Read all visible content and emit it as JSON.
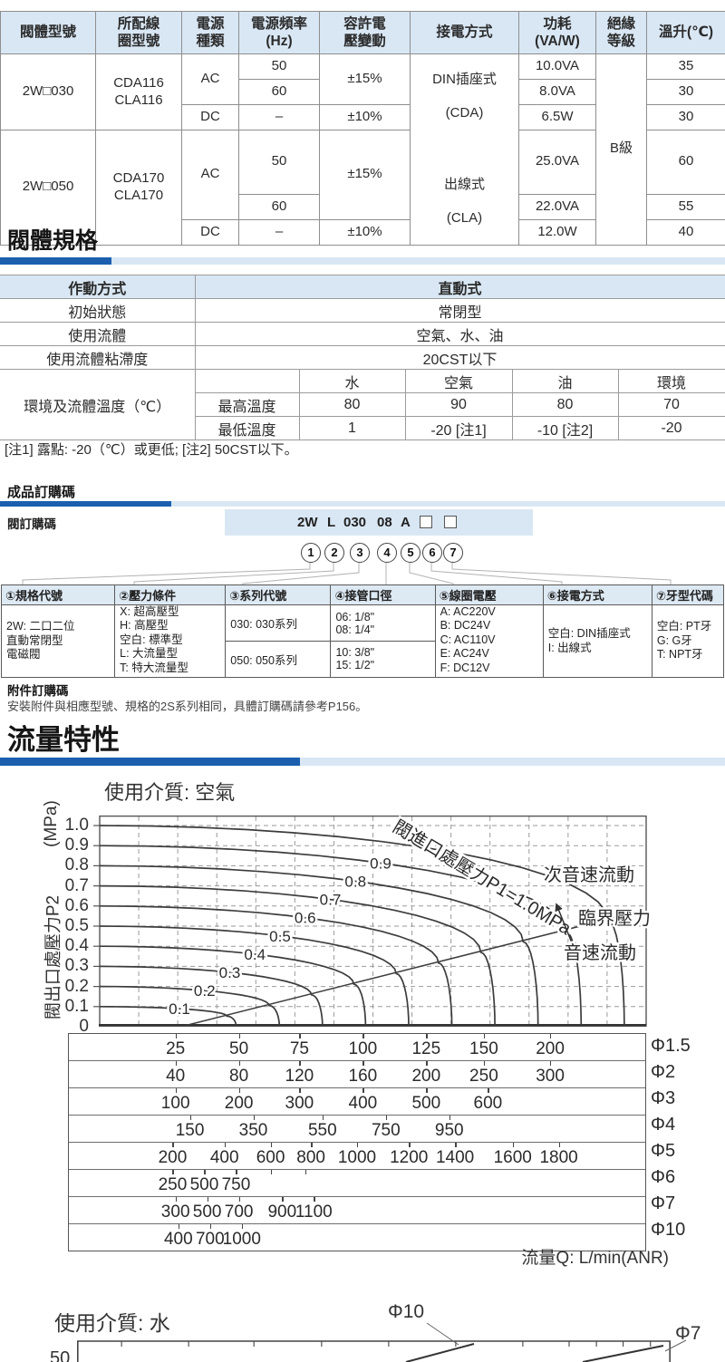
{
  "colors": {
    "accent_dark": "#1b5fae",
    "accent_light": "#d9e7f4",
    "header_bg": "#d9e7f4",
    "border": "#8e8e8e"
  },
  "power_table": {
    "headers": [
      "閥體型號",
      "所配線\n圈型號",
      "電源\n種類",
      "電源頻率\n(Hz)",
      "容許電\n壓變動",
      "接電方式",
      "功耗\n(VA/W)",
      "絕緣\n等級",
      "溫升(℃)"
    ],
    "groups": [
      {
        "model": "2W□030",
        "coil": "CDA116\nCLA116",
        "ac": "AC",
        "dc": "DC",
        "f50": "50",
        "f60": "60",
        "fdc": "–",
        "v_ac": "±15%",
        "v_dc": "±10%",
        "power": [
          "10.0VA",
          "8.0VA",
          "6.5W"
        ],
        "temp_rise": [
          "35",
          "30",
          "30"
        ]
      },
      {
        "model": "2W□050",
        "coil": "CDA170\nCLA170",
        "ac": "AC",
        "dc": "DC",
        "f50": "50",
        "f60": "60",
        "fdc": "–",
        "v_ac": "±15%",
        "v_dc": "±10%",
        "power": [
          "25.0VA",
          "22.0VA",
          "12.0W"
        ],
        "temp_rise": [
          "60",
          "55",
          "40"
        ]
      }
    ],
    "connection": {
      "line1": "DIN插座式",
      "line2": "(CDA)",
      "line3": "出線式",
      "line4": "(CLA)"
    },
    "insulation": "B級"
  },
  "valve_spec": {
    "title": "閥體規格",
    "rows": [
      {
        "label": "作動方式",
        "value": "直動式"
      },
      {
        "label": "初始狀態",
        "value": "常閉型"
      },
      {
        "label": "使用流體",
        "value": "空氣、水、油"
      },
      {
        "label": "使用流體粘滯度",
        "value": "20CST以下"
      }
    ],
    "temp": {
      "label": "環境及流體溫度（℃）",
      "columns": [
        "水",
        "空氣",
        "油",
        "環境"
      ],
      "max_label": "最高溫度",
      "max": [
        "80",
        "90",
        "80",
        "70"
      ],
      "min_label": "最低溫度",
      "min": [
        "1",
        "-20 [注1]",
        "-10 [注2]",
        "-20"
      ]
    },
    "note": "[注1] 露點: -20（℃）或更低; [注2] 50CST以下。"
  },
  "ordering": {
    "title": "成品訂購碼",
    "row_label": "閥訂購碼",
    "code_parts": [
      "2W",
      "L",
      "030",
      "08",
      "A"
    ],
    "digits": [
      "1",
      "2",
      "3",
      "4",
      "5",
      "6",
      "7"
    ],
    "columns": [
      {
        "header": "①規格代號",
        "lines": [
          "2W: 二口二位",
          "直動常閉型",
          "電磁閥"
        ]
      },
      {
        "header": "②壓力條件",
        "lines": [
          "X: 超高壓型",
          "H: 高壓型",
          "空白: 標準型",
          "L: 大流量型",
          "T: 特大流量型"
        ]
      },
      {
        "header": "③系列代號",
        "cells": [
          "030: 030系列",
          "050: 050系列"
        ]
      },
      {
        "header": "④接管口徑",
        "cells": [
          "06: 1/8\"\n08: 1/4\"",
          "10: 3/8\"\n15: 1/2\""
        ]
      },
      {
        "header": "⑤線圈電壓",
        "lines": [
          "A: AC220V",
          "B: DC24V",
          "C: AC110V",
          "E: AC24V",
          "F: DC12V"
        ]
      },
      {
        "header": "⑥接電方式",
        "lines": [
          "空白: DIN插座式",
          "I: 出線式"
        ]
      },
      {
        "header": "⑦牙型代碼",
        "lines": [
          "空白: PT牙",
          "G: G牙",
          "T: NPT牙"
        ]
      }
    ]
  },
  "accessory": {
    "title": "附件訂購碼",
    "text": "安裝附件與相應型號、規格的2S系列相同，具體訂購碼請參考P156。"
  },
  "flow_section_title": "流量特性",
  "chart_data": [
    {
      "type": "line",
      "title": "使用介質: 空氣",
      "xlabel": "流量Q: L/min(ANR)",
      "ylabel": "閥出口處壓力P2",
      "ylabel_unit": "(MPa)",
      "ylim": [
        0,
        1.05
      ],
      "yticks": [
        "1.0",
        "0.9",
        "0.8",
        "0.7",
        "0.6",
        "0.5",
        "0.4",
        "0.3",
        "0.2",
        "0.1",
        "0"
      ],
      "grid": "dashed",
      "inlet_pressures": [
        0.1,
        0.2,
        0.3,
        0.4,
        0.5,
        0.6,
        0.7,
        0.8,
        0.9,
        1.0
      ],
      "curve_labels": [
        "0.1",
        "0.2",
        "0.3",
        "0.4",
        "0.5",
        "0.6",
        "0.7",
        "0.8",
        "0.9"
      ],
      "curve_top_label": "閥進口處壓力P1=1.0MPa",
      "critical_pressure_ratio": 0.528,
      "annotations": {
        "subsonic": "次音速流動",
        "critical": "臨界壓力",
        "sonic": "音速流動"
      },
      "flow_scales": [
        {
          "diameter": "Φ1.5",
          "values": [
            "25",
            "50",
            "75",
            "100",
            "125",
            "150",
            "200"
          ],
          "positions": [
            0.185,
            0.295,
            0.4,
            0.51,
            0.62,
            0.72,
            0.835
          ]
        },
        {
          "diameter": "Φ2",
          "values": [
            "40",
            "80",
            "120",
            "160",
            "200",
            "250",
            "300"
          ],
          "positions": [
            0.185,
            0.295,
            0.4,
            0.51,
            0.62,
            0.72,
            0.835
          ]
        },
        {
          "diameter": "Φ3",
          "values": [
            "100",
            "200",
            "300",
            "400",
            "500",
            "600"
          ],
          "positions": [
            0.185,
            0.295,
            0.4,
            0.51,
            0.62,
            0.727
          ]
        },
        {
          "diameter": "Φ4",
          "values": [
            "150",
            "350",
            "550",
            "750",
            "950"
          ],
          "positions": [
            0.21,
            0.32,
            0.44,
            0.55,
            0.66
          ]
        },
        {
          "diameter": "Φ5",
          "values": [
            "200",
            "400",
            "600",
            "800",
            "1000",
            "1200",
            "1400",
            "1600",
            "1800"
          ],
          "positions": [
            0.18,
            0.27,
            0.35,
            0.42,
            0.5,
            0.59,
            0.67,
            0.77,
            0.85
          ]
        },
        {
          "diameter": "Φ6",
          "values": [
            "250",
            "500",
            "750"
          ],
          "positions": [
            0.18,
            0.235,
            0.29
          ],
          "extra_ticks": [
            0.35,
            0.41
          ]
        },
        {
          "diameter": "Φ7",
          "values": [
            "300",
            "500",
            "700",
            "900",
            "1100"
          ],
          "positions": [
            0.185,
            0.24,
            0.295,
            0.37,
            0.425
          ]
        },
        {
          "diameter": "Φ10",
          "values": [
            "400",
            "700",
            "1000"
          ],
          "positions": [
            0.19,
            0.245,
            0.3
          ]
        }
      ]
    },
    {
      "type": "line",
      "title": "使用介質: 水",
      "curve_labels": [
        "Φ10",
        "Φ7"
      ],
      "visible_ytick": "50",
      "top_ticks": [
        0.075,
        0.188,
        0.298,
        0.412,
        0.525,
        0.638,
        0.751,
        0.829,
        0.875,
        0.92,
        0.966
      ]
    }
  ]
}
